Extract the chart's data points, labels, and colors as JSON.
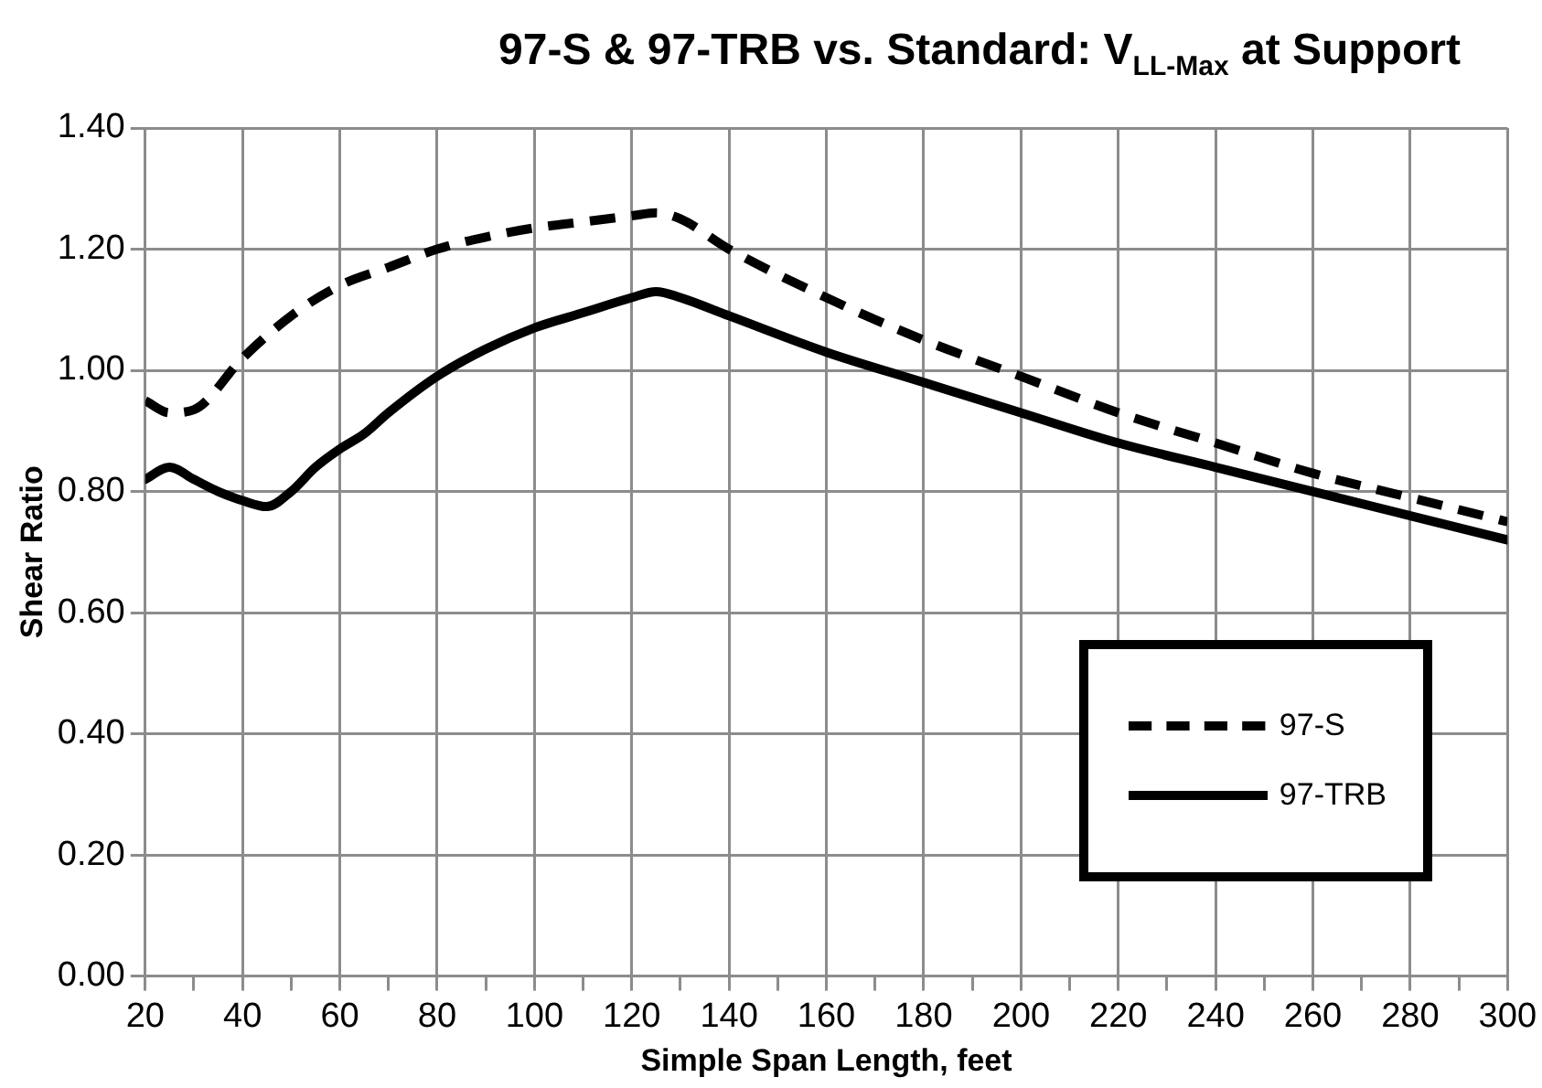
{
  "chart_data": {
    "type": "line",
    "title": "97-S & 97-TRB vs. Standard: V$_{LL-Max}$ at Support",
    "xlabel": "Simple Span Length, feet",
    "ylabel": "Shear Ratio",
    "xlim": [
      20,
      300
    ],
    "xticks": [
      20,
      {
        "value": 30,
        "label": null
      },
      40,
      {
        "value": 50,
        "label": null
      },
      60,
      {
        "value": 70,
        "label": null
      },
      80,
      {
        "value": 90,
        "label": null
      },
      100,
      {
        "value": 110,
        "label": null
      },
      120,
      {
        "value": 130,
        "label": null
      },
      140,
      {
        "value": 150,
        "label": null
      },
      160,
      {
        "value": 170,
        "label": null
      },
      180,
      {
        "value": 190,
        "label": null
      },
      200,
      {
        "value": 210,
        "label": null
      },
      220,
      {
        "value": 230,
        "label": null
      },
      240,
      {
        "value": 250,
        "label": null
      },
      260,
      {
        "value": 270,
        "label": null
      },
      280,
      {
        "value": 290,
        "label": null
      },
      300
    ],
    "ylim": [
      0,
      1.4
    ],
    "yticks": [
      {
        "value": 0,
        "label": "0.00"
      },
      {
        "value": 0.2,
        "label": "0.20"
      },
      {
        "value": 0.4,
        "label": "0.40"
      },
      {
        "value": 0.6,
        "label": "0.60"
      },
      {
        "value": 0.8,
        "label": "0.80"
      },
      {
        "value": 1,
        "label": "1.00"
      },
      {
        "value": 1.2,
        "label": "1.20"
      },
      {
        "value": 1.4,
        "label": "1.40"
      }
    ],
    "grid": true,
    "legend": "bottom right",
    "marker": "none",
    "series": [
      {
        "name": "97-S",
        "color": "#000000",
        "line_style": "dashed",
        "x": [
          20,
          25,
          30,
          40,
          50,
          60,
          70,
          80,
          90,
          100,
          110,
          120,
          125,
          130,
          140,
          160,
          180,
          200,
          220,
          240,
          260,
          280,
          300
        ],
        "values": [
          0.95,
          0.93,
          0.935,
          1.02,
          1.09,
          1.14,
          1.17,
          1.2,
          1.22,
          1.235,
          1.245,
          1.255,
          1.26,
          1.25,
          1.2,
          1.12,
          1.05,
          0.99,
          0.93,
          0.88,
          0.83,
          0.79,
          0.75
        ]
      },
      {
        "name": "97-TRB",
        "color": "#000000",
        "line_style": "solid",
        "x": [
          20,
          25,
          30,
          35,
          40,
          45,
          50,
          55,
          60,
          65,
          70,
          80,
          90,
          100,
          110,
          120,
          125,
          130,
          140,
          160,
          180,
          200,
          220,
          240,
          260,
          280,
          300
        ],
        "values": [
          0.82,
          0.84,
          0.82,
          0.8,
          0.785,
          0.775,
          0.8,
          0.84,
          0.87,
          0.895,
          0.93,
          0.99,
          1.035,
          1.07,
          1.095,
          1.12,
          1.13,
          1.12,
          1.09,
          1.03,
          0.98,
          0.93,
          0.88,
          0.84,
          0.8,
          0.76,
          0.72
        ]
      }
    ]
  }
}
